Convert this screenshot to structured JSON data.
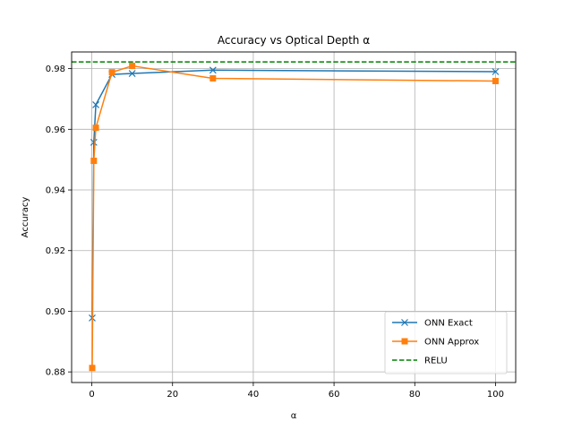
{
  "chart_data": {
    "type": "line",
    "title": "Accuracy vs Optical Depth α",
    "xlabel": "α",
    "ylabel": "Accuracy",
    "xlim": [
      -5,
      105
    ],
    "ylim": [
      0.8765,
      0.9855
    ],
    "xticks": [
      0,
      20,
      40,
      60,
      80,
      100
    ],
    "yticks": [
      0.88,
      0.9,
      0.92,
      0.94,
      0.96,
      0.98
    ],
    "ytick_labels": [
      "0.88",
      "0.90",
      "0.92",
      "0.94",
      "0.96",
      "0.98"
    ],
    "grid": true,
    "legend_position": "bottom-right",
    "series": [
      {
        "name": "ONN Exact",
        "color": "#1f77b4",
        "marker": "x",
        "x": [
          0.1,
          0.5,
          1,
          5,
          10,
          30,
          100
        ],
        "y": [
          0.8978,
          0.9557,
          0.9681,
          0.9781,
          0.9784,
          0.9795,
          0.979
        ]
      },
      {
        "name": "ONN Approx",
        "color": "#ff7f0e",
        "marker": "square",
        "x": [
          0.1,
          0.5,
          1,
          5,
          10,
          30,
          100
        ],
        "y": [
          0.8813,
          0.9496,
          0.9605,
          0.9788,
          0.9809,
          0.9768,
          0.9759
        ]
      }
    ],
    "hlines": [
      {
        "name": "RELU",
        "color": "#008000",
        "style": "dashed",
        "y": 0.9822
      }
    ]
  }
}
